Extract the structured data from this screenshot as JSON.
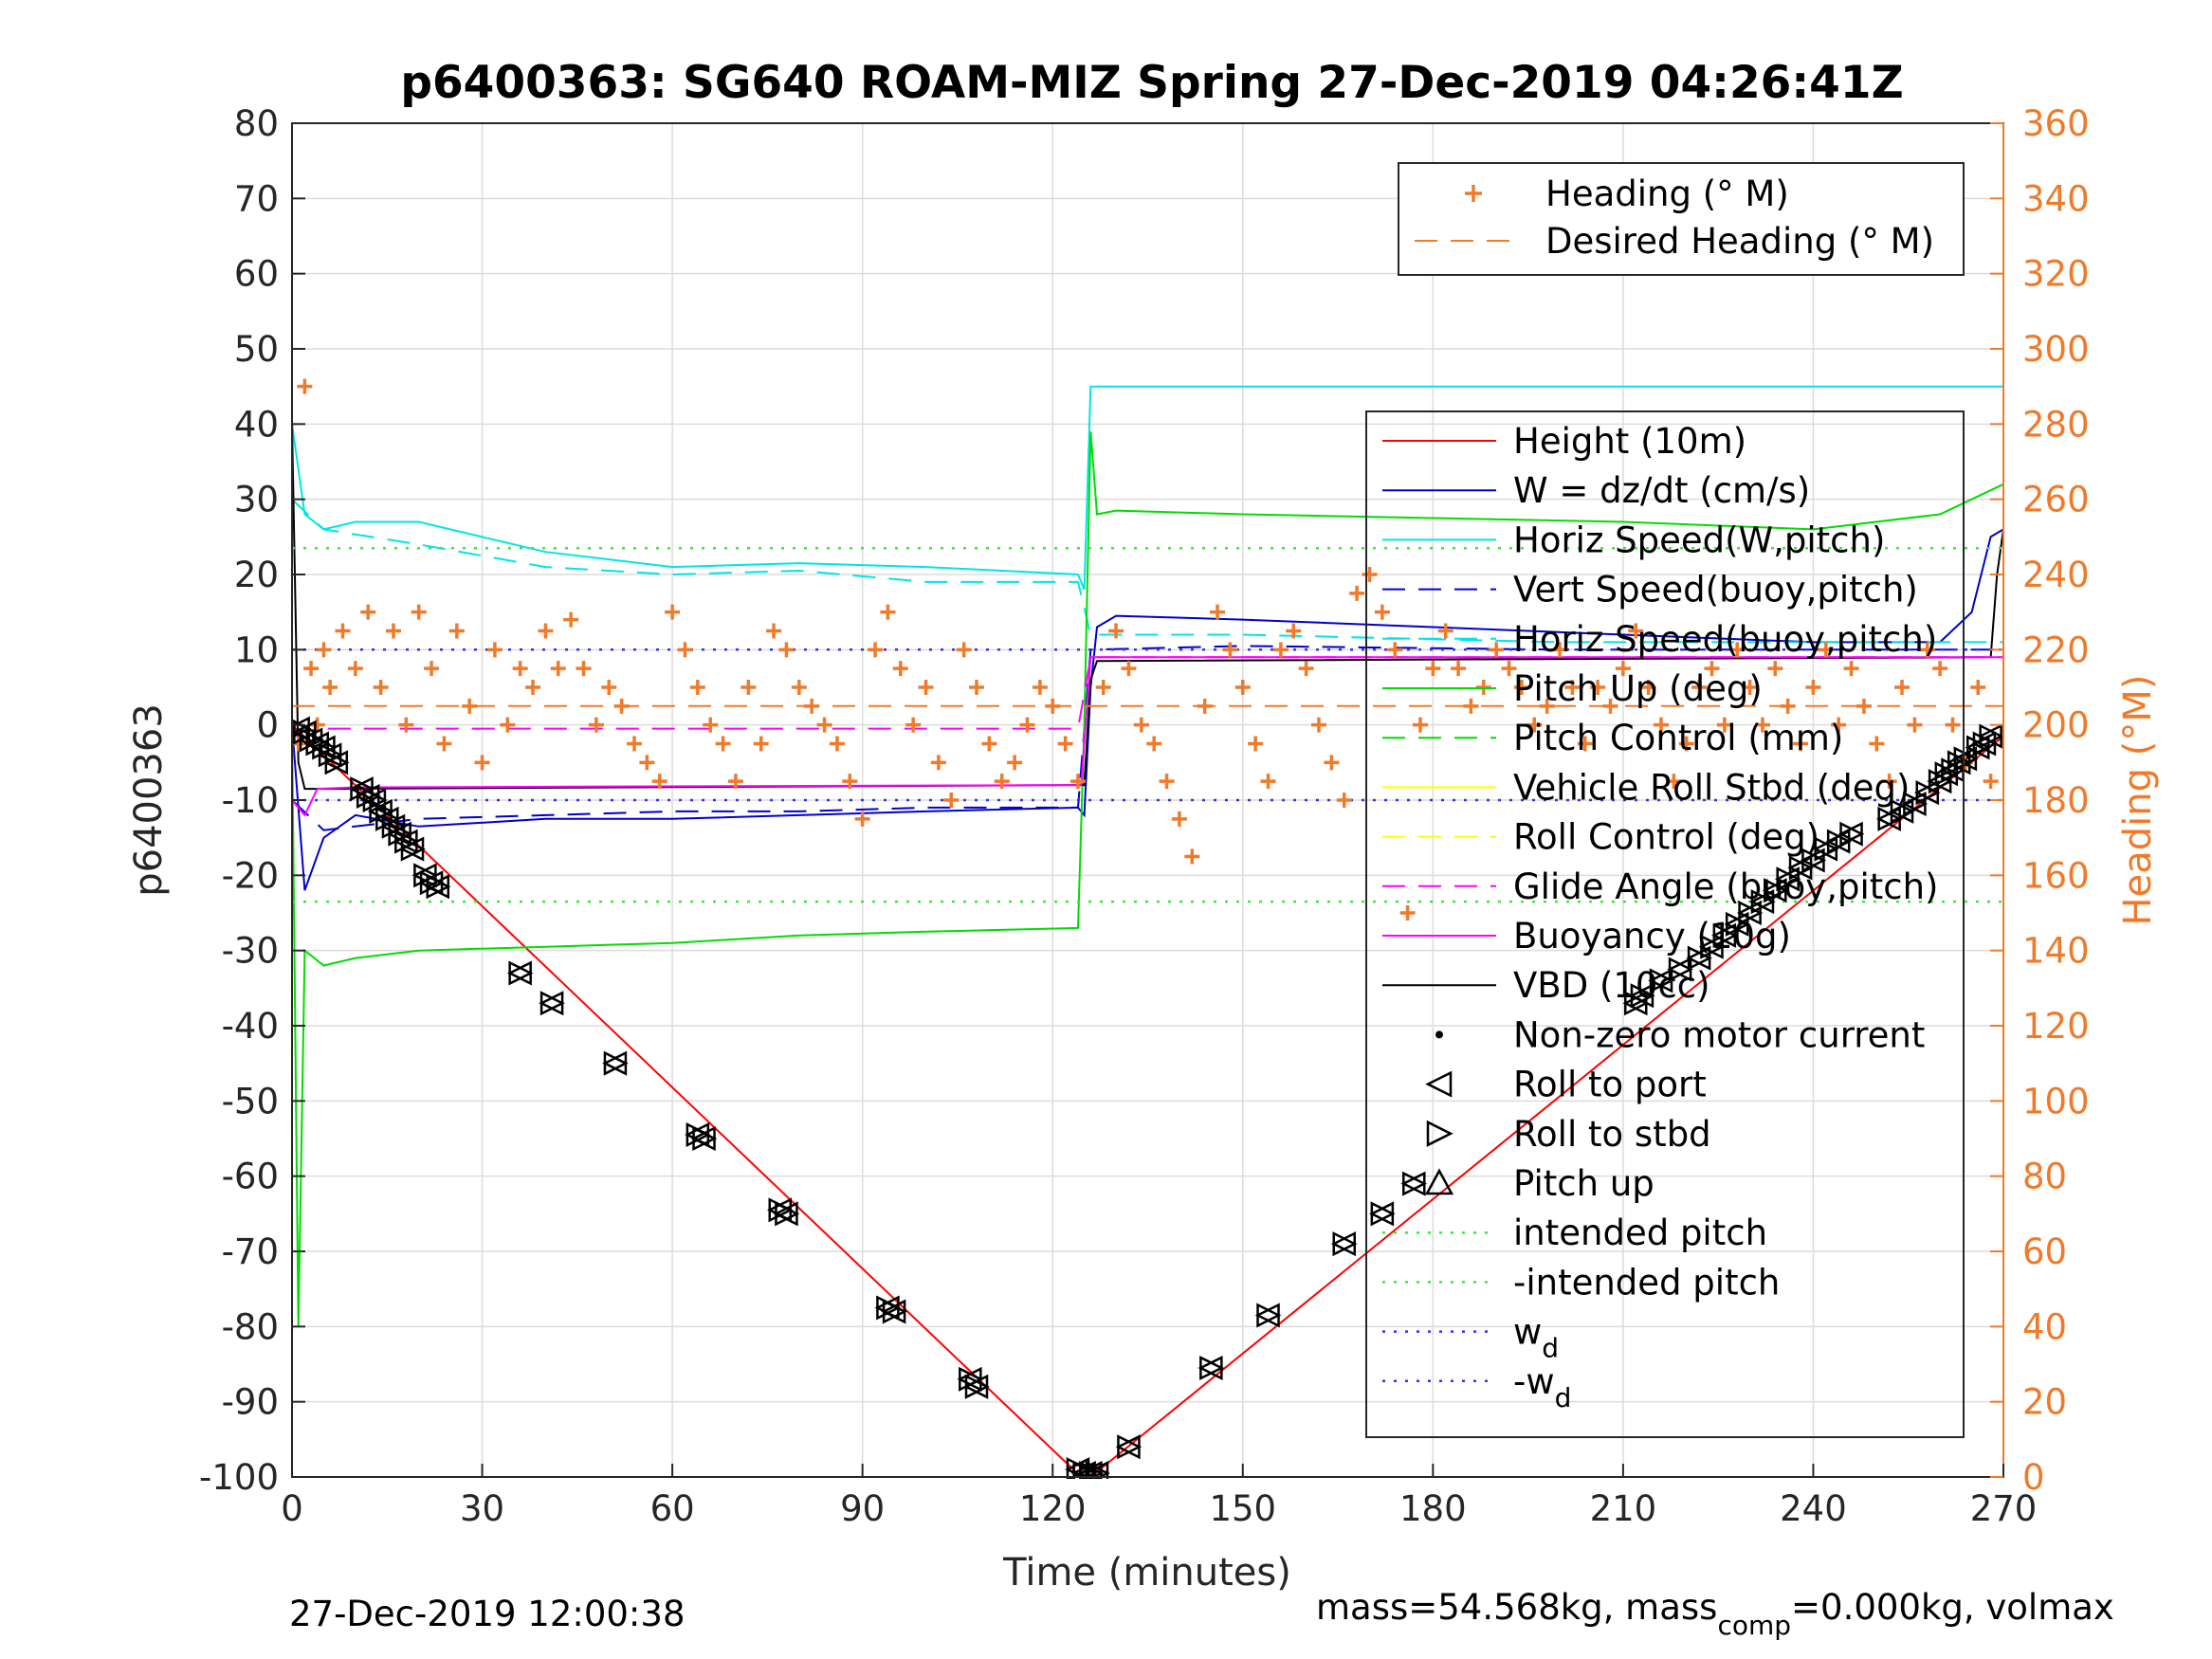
{
  "chart_data": {
    "type": "line",
    "title": "p6400363: SG640 ROAM-MIZ Spring 27-Dec-2019 04:26:41Z",
    "xlabel": "Time (minutes)",
    "ylabel": "p6400363",
    "ylabel_right": "Heading (°M)",
    "xlim": [
      0,
      270
    ],
    "ylim": [
      -100,
      80
    ],
    "ylim_right": [
      0,
      360
    ],
    "x_ticks": [
      "0",
      "30",
      "60",
      "90",
      "120",
      "150",
      "180",
      "210",
      "240",
      "270"
    ],
    "y_ticks": [
      "80",
      "70",
      "60",
      "50",
      "40",
      "30",
      "20",
      "10",
      "0",
      "-10",
      "-20",
      "-30",
      "-40",
      "-50",
      "-60",
      "-70",
      "-80",
      "-90",
      "-100"
    ],
    "y_ticks_right": [
      "360",
      "340",
      "320",
      "300",
      "280",
      "260",
      "240",
      "220",
      "200",
      "180",
      "160",
      "140",
      "120",
      "100",
      "80",
      "60",
      "40",
      "20",
      "0"
    ],
    "grid": true,
    "colors": {
      "height": "#ff0000",
      "w": "#0000cc",
      "horiz_speed": "#00e5e5",
      "pitch": "#00dd00",
      "roll": "#ffff00",
      "glide": "#ff00ff",
      "vbd": "#000000",
      "heading": "#f07a29",
      "intended_pitch": "#33ee33",
      "wd": "#3333ee"
    },
    "heading_legend": {
      "position": "top-right",
      "entries": [
        {
          "name": "Heading (° M)",
          "style": "plus"
        },
        {
          "name": "Desired Heading (° M)",
          "style": "dashed"
        }
      ]
    },
    "legend": {
      "position": "right",
      "entries": [
        {
          "name": "Height (10m)",
          "style": "solid",
          "color": "#ff0000"
        },
        {
          "name": "W = dz/dt (cm/s)",
          "style": "solid",
          "color": "#0000cc"
        },
        {
          "name": "Horiz Speed(W,pitch)",
          "style": "solid",
          "color": "#00e5e5"
        },
        {
          "name": "Vert Speed(buoy,pitch)",
          "style": "dashed",
          "color": "#0000cc"
        },
        {
          "name": "Horiz Speed(buoy,pitch)",
          "style": "dashed",
          "color": "#00e5e5"
        },
        {
          "name": "Pitch Up (deg)",
          "style": "solid",
          "color": "#00dd00"
        },
        {
          "name": "Pitch Control (mm)",
          "style": "dashed",
          "color": "#00dd00"
        },
        {
          "name": "Vehicle Roll Stbd (deg)",
          "style": "solid",
          "color": "#ffff00"
        },
        {
          "name": "Roll Control (deg)",
          "style": "dashed",
          "color": "#ffff00"
        },
        {
          "name": "Glide Angle (buoy,pitch)",
          "style": "dashed",
          "color": "#ff00ff"
        },
        {
          "name": "Buoyancy (10g)",
          "style": "solid",
          "color": "#ff00ff"
        },
        {
          "name": "VBD (10cc)",
          "style": "solid",
          "color": "#000000"
        },
        {
          "name": "Non-zero motor current",
          "style": "dot",
          "color": "#000000"
        },
        {
          "name": "Roll to port",
          "style": "tri-left",
          "color": "#000000"
        },
        {
          "name": "Roll to stbd",
          "style": "tri-right",
          "color": "#000000"
        },
        {
          "name": "Pitch up",
          "style": "tri-up",
          "color": "#000000"
        },
        {
          "name": "intended pitch",
          "style": "dotted",
          "color": "#33ee33"
        },
        {
          "name": "-intended pitch",
          "style": "dotted",
          "color": "#33ee33"
        },
        {
          "name": "w",
          "sub": "d",
          "style": "dotted",
          "color": "#3333ee"
        },
        {
          "name": "-w",
          "sub": "d",
          "style": "dotted",
          "color": "#3333ee"
        }
      ]
    },
    "series": [
      {
        "name": "Height (10m)",
        "x": [
          0,
          124.5,
          126,
          270
        ],
        "y": [
          0,
          -100,
          -100,
          -1.5
        ]
      },
      {
        "name": "W = dz/dt (cm/s)",
        "x": [
          0,
          2,
          5,
          10,
          20,
          40,
          60,
          80,
          100,
          124,
          125,
          126,
          127,
          130,
          150,
          180,
          210,
          240,
          260,
          265,
          268,
          270
        ],
        "y": [
          0,
          -22,
          -15,
          -12,
          -13.5,
          -12.5,
          -12.5,
          -12,
          -11.5,
          -11,
          -12,
          5,
          13,
          14.5,
          14,
          13,
          12,
          11,
          11,
          15,
          25,
          26
        ]
      },
      {
        "name": "Horiz Speed(W,pitch)",
        "x": [
          0,
          2,
          5,
          10,
          20,
          40,
          60,
          80,
          100,
          124,
          125,
          126,
          270
        ],
        "y": [
          40,
          28,
          26,
          27,
          27,
          23,
          21,
          21.5,
          21,
          20,
          18,
          45,
          45
        ]
      },
      {
        "name": "Vert Speed(buoy,pitch)",
        "x": [
          0,
          5,
          20,
          40,
          60,
          80,
          100,
          124,
          126,
          150,
          200,
          250,
          270
        ],
        "y": [
          -10,
          -14,
          -12.5,
          -12,
          -11.5,
          -11.5,
          -11,
          -11,
          10,
          10.5,
          10,
          10,
          10
        ]
      },
      {
        "name": "Horiz Speed(buoy,pitch)",
        "x": [
          0,
          5,
          20,
          40,
          60,
          80,
          100,
          124,
          126,
          150,
          200,
          250,
          270
        ],
        "y": [
          30,
          26,
          24,
          21,
          20,
          20.5,
          19,
          19,
          12,
          12,
          11,
          11,
          11
        ]
      },
      {
        "name": "Pitch Up (deg)",
        "x": [
          0,
          1,
          2,
          5,
          10,
          20,
          40,
          60,
          80,
          100,
          124,
          125,
          126,
          127,
          130,
          150,
          180,
          210,
          240,
          260,
          270
        ],
        "y": [
          0,
          -80,
          -30,
          -32,
          -31,
          -30,
          -29.5,
          -29,
          -28,
          -27.5,
          -27,
          0,
          39,
          28,
          28.5,
          28,
          27.5,
          27,
          26,
          28,
          32
        ]
      },
      {
        "name": "VBD (10cc)",
        "x": [
          0,
          1,
          2,
          5,
          124.5,
          125,
          126,
          127,
          268,
          269,
          270
        ],
        "y": [
          40,
          -5,
          -8.5,
          -8.5,
          -8,
          -8,
          6,
          8.5,
          9,
          20,
          26
        ]
      },
      {
        "name": "Buoyancy (10g)",
        "x": [
          0,
          2,
          4,
          10,
          124.5,
          126,
          270
        ],
        "y": [
          -10,
          -12,
          -8.5,
          -8.3,
          -8,
          9,
          9
        ]
      },
      {
        "name": "Glide Angle (buoy,pitch)",
        "x": [
          0,
          5,
          124,
          126,
          270
        ],
        "y": [
          -1,
          -0.5,
          -0.5,
          9,
          9
        ]
      },
      {
        "name": "intended pitch",
        "x": [
          0,
          270
        ],
        "y": [
          23.5,
          23.5
        ]
      },
      {
        "name": "-intended pitch",
        "x": [
          0,
          270
        ],
        "y": [
          -23.5,
          -23.5
        ]
      },
      {
        "name": "w_d",
        "x": [
          0,
          270
        ],
        "y": [
          10,
          10
        ]
      },
      {
        "name": "-w_d",
        "x": [
          0,
          270
        ],
        "y": [
          -10,
          -10
        ]
      },
      {
        "name": "Desired Heading (° M)",
        "axis": "right",
        "x": [
          0,
          270
        ],
        "y": [
          205,
          205
        ]
      },
      {
        "name": "Heading (° M)",
        "axis": "right",
        "style": "plus",
        "x": [
          1,
          2,
          3,
          4,
          5,
          6,
          8,
          10,
          12,
          14,
          16,
          18,
          20,
          22,
          24,
          26,
          28,
          30,
          32,
          34,
          36,
          38,
          40,
          42,
          44,
          46,
          48,
          50,
          52,
          54,
          56,
          58,
          60,
          62,
          64,
          66,
          68,
          70,
          72,
          74,
          76,
          78,
          80,
          82,
          84,
          86,
          88,
          90,
          92,
          94,
          96,
          98,
          100,
          102,
          104,
          106,
          108,
          110,
          112,
          114,
          116,
          118,
          120,
          122,
          124,
          128,
          130,
          132,
          134,
          136,
          138,
          140,
          142,
          144,
          146,
          148,
          150,
          152,
          154,
          156,
          158,
          160,
          162,
          164,
          166,
          168,
          170,
          172,
          174,
          176,
          178,
          180,
          182,
          184,
          186,
          188,
          190,
          192,
          194,
          196,
          198,
          200,
          202,
          204,
          206,
          208,
          210,
          212,
          214,
          216,
          218,
          220,
          222,
          224,
          226,
          228,
          230,
          232,
          234,
          236,
          238,
          240,
          242,
          244,
          246,
          248,
          250,
          252,
          254,
          256,
          258,
          260,
          262,
          264,
          266,
          268
        ],
        "y": [
          195,
          290,
          215,
          200,
          220,
          210,
          225,
          215,
          230,
          210,
          225,
          200,
          230,
          215,
          195,
          225,
          205,
          190,
          220,
          200,
          215,
          210,
          225,
          215,
          228,
          215,
          200,
          210,
          205,
          195,
          190,
          185,
          230,
          220,
          210,
          200,
          195,
          185,
          210,
          195,
          225,
          220,
          210,
          205,
          200,
          195,
          185,
          175,
          220,
          230,
          215,
          200,
          210,
          190,
          180,
          220,
          210,
          195,
          185,
          190,
          200,
          210,
          205,
          195,
          185,
          210,
          225,
          215,
          200,
          195,
          185,
          175,
          165,
          205,
          230,
          220,
          210,
          195,
          185,
          220,
          225,
          215,
          200,
          190,
          180,
          235,
          240,
          230,
          220,
          150,
          200,
          215,
          225,
          215,
          205,
          210,
          220,
          215,
          210,
          200,
          205,
          220,
          210,
          195,
          210,
          205,
          215,
          225,
          210,
          200,
          185,
          195,
          210,
          215,
          200,
          220,
          210,
          200,
          215,
          205,
          195,
          210,
          220,
          200,
          215,
          205,
          195,
          185,
          210,
          200,
          220,
          215,
          200,
          190,
          210,
          185
        ]
      },
      {
        "name": "Roll markers",
        "style": "triangles",
        "x": [
          1,
          2,
          3,
          4,
          5,
          6,
          7,
          11,
          12,
          13,
          14,
          15,
          16,
          17,
          18,
          19,
          21,
          22,
          23,
          36,
          41,
          51,
          64,
          65,
          77,
          78,
          94,
          95,
          107,
          108,
          124,
          125,
          126,
          127,
          132,
          145,
          154,
          166,
          172,
          177,
          212,
          213,
          216,
          219,
          222,
          224,
          226,
          228,
          230,
          232,
          234,
          236,
          238,
          240,
          242,
          244,
          246,
          252,
          254,
          256,
          258,
          260,
          261,
          262,
          263,
          264,
          266,
          267,
          268
        ],
        "y": [
          -0.5,
          -1,
          -2,
          -2.5,
          -3,
          -4,
          -5,
          -8.5,
          -9.5,
          -10,
          -11.5,
          -12.5,
          -13.5,
          -14.5,
          -15.5,
          -16.5,
          -20,
          -21,
          -21.5,
          -33,
          -37,
          -45,
          -54.5,
          -55,
          -64.5,
          -65,
          -77.5,
          -78,
          -87,
          -88,
          -99,
          -99.5,
          -99.5,
          -99.5,
          -96,
          -85.5,
          -78.5,
          -69,
          -65,
          -61,
          -37,
          -36,
          -34,
          -32.5,
          -31,
          -29.5,
          -28,
          -26.5,
          -25,
          -23.5,
          -22,
          -20.5,
          -19,
          -18,
          -16.5,
          -15.5,
          -14.5,
          -12.5,
          -11.5,
          -10.5,
          -9,
          -7.5,
          -6.5,
          -6,
          -5,
          -4.5,
          -3,
          -2.5,
          -1.5
        ]
      }
    ]
  },
  "footer": {
    "left": "27-Dec-2019 12:00:38",
    "right_prefix": "mass=54.568kg, mass",
    "right_sub": "comp",
    "right_suffix": "=0.000kg, volmax"
  }
}
